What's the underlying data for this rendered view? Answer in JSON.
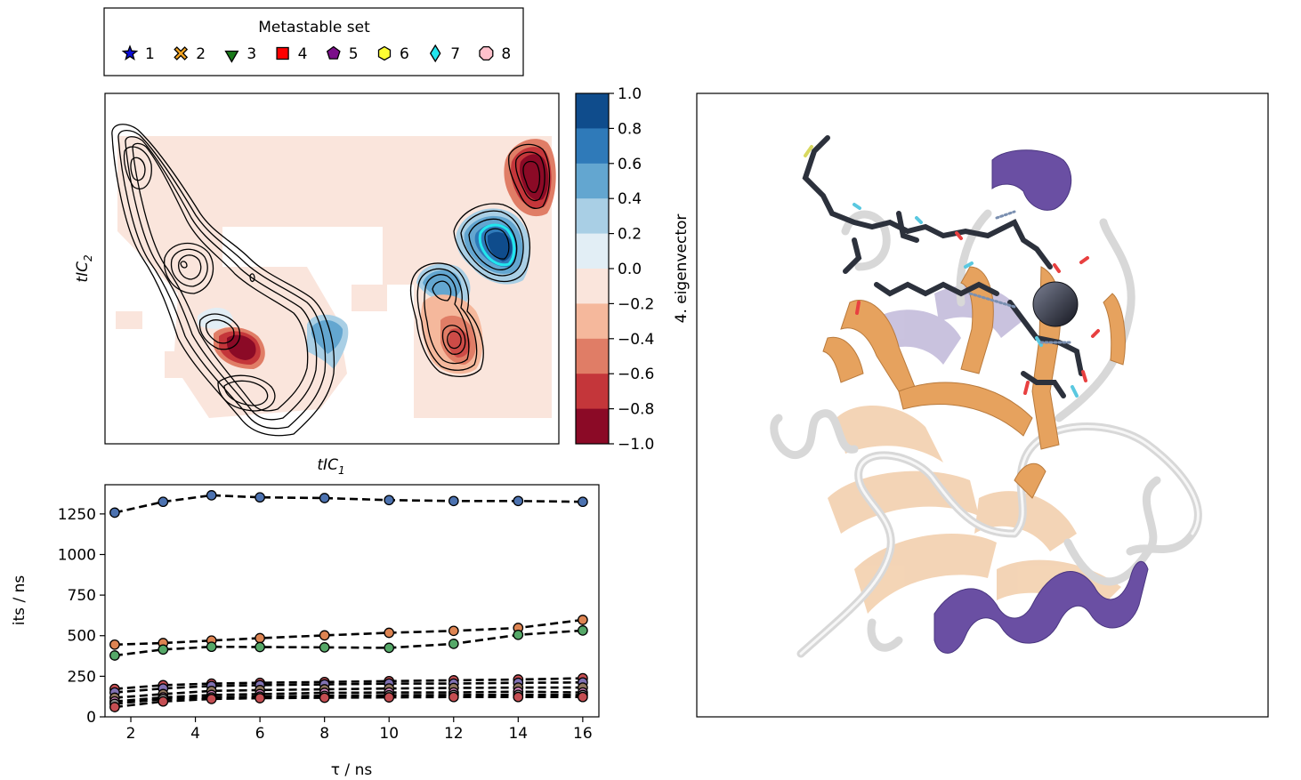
{
  "legend": {
    "title": "Metastable set",
    "entries": [
      {
        "label": "1",
        "marker": "star",
        "color": "#0b0bd6"
      },
      {
        "label": "2",
        "marker": "x",
        "color": "#f5a623"
      },
      {
        "label": "3",
        "marker": "triangle-down",
        "color": "#1a7a1a"
      },
      {
        "label": "4",
        "marker": "square",
        "color": "#ff0000"
      },
      {
        "label": "5",
        "marker": "pentagon",
        "color": "#7b0f8a"
      },
      {
        "label": "6",
        "marker": "hexagon",
        "color": "#ffff33"
      },
      {
        "label": "7",
        "marker": "diamond",
        "color": "#22e6ee"
      },
      {
        "label": "8",
        "marker": "octagon",
        "color": "#ffc0cb"
      }
    ]
  },
  "chart_data": [
    {
      "type": "heatmap",
      "xlabel": "tIC",
      "xlabel_sub": "1",
      "ylabel": "tIC",
      "ylabel_sub": "2",
      "colorbar": {
        "label": "4. eigenvector",
        "ticks": [
          "1.0",
          "0.8",
          "0.6",
          "0.4",
          "0.2",
          "0.0",
          "−0.2",
          "−0.4",
          "−0.6",
          "−0.8",
          "−1.0"
        ],
        "colors": [
          "#0f4c8c",
          "#2f7ab9",
          "#63a6d0",
          "#a9cfe5",
          "#e2eef5",
          "#fae5dc",
          "#f5b89c",
          "#e07d66",
          "#c4363a",
          "#8b0a26"
        ],
        "range": [
          -1.0,
          1.0
        ]
      },
      "grid": false
    },
    {
      "type": "line",
      "xlabel": "τ / ns",
      "ylabel": "its / ns",
      "xlim": [
        1.2,
        16.5
      ],
      "ylim": [
        0,
        1430
      ],
      "xticks": [
        2,
        4,
        6,
        8,
        10,
        12,
        14,
        16
      ],
      "yticks": [
        0,
        250,
        500,
        750,
        1000,
        1250
      ],
      "x": [
        1.5,
        3,
        4.5,
        6,
        8,
        10,
        12,
        14,
        16
      ],
      "series": [
        {
          "color": "#4c72b0",
          "values": [
            1258,
            1325,
            1365,
            1352,
            1348,
            1335,
            1330,
            1330,
            1325
          ]
        },
        {
          "color": "#dd8452",
          "values": [
            445,
            455,
            470,
            485,
            502,
            518,
            530,
            548,
            597
          ]
        },
        {
          "color": "#55a868",
          "values": [
            378,
            415,
            432,
            430,
            428,
            425,
            450,
            505,
            532
          ]
        },
        {
          "color": "#c44e52",
          "values": [
            172,
            195,
            205,
            210,
            215,
            220,
            225,
            230,
            238
          ]
        },
        {
          "color": "#8172b3",
          "values": [
            150,
            175,
            190,
            195,
            200,
            205,
            205,
            210,
            212
          ]
        },
        {
          "color": "#937860",
          "values": [
            118,
            140,
            160,
            165,
            170,
            175,
            178,
            180,
            180
          ]
        },
        {
          "color": "#da8bc3",
          "values": [
            95,
            120,
            135,
            140,
            148,
            150,
            150,
            155,
            150
          ]
        },
        {
          "color": "#8c8c8c",
          "values": [
            80,
            110,
            120,
            125,
            130,
            133,
            135,
            136,
            135
          ]
        },
        {
          "color": "#c44e52",
          "values": [
            60,
            95,
            110,
            115,
            118,
            120,
            122,
            122,
            122
          ]
        }
      ],
      "grid": false
    }
  ]
}
